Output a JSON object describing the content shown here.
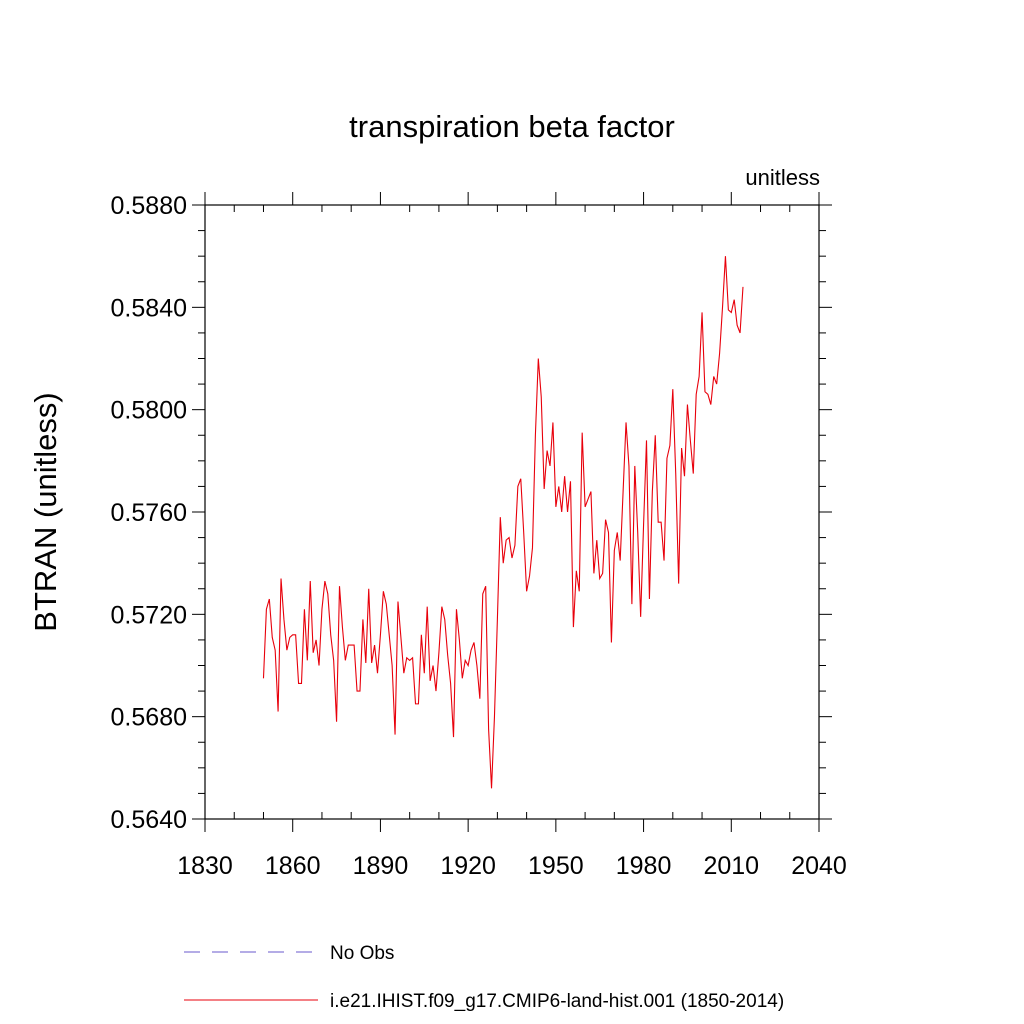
{
  "chart_data": {
    "type": "line",
    "title": "transpiration beta factor",
    "units_label": "unitless",
    "ylabel": "BTRAN  (unitless)",
    "xlabel": "",
    "xlim": [
      1830,
      2040
    ],
    "ylim": [
      0.564,
      0.588
    ],
    "x_ticks": [
      1830,
      1860,
      1890,
      1920,
      1950,
      1980,
      2010,
      2040
    ],
    "x_tick_labels": [
      "1830",
      "1860",
      "1890",
      "1920",
      "1950",
      "1980",
      "2010",
      "2040"
    ],
    "y_ticks": [
      0.564,
      0.568,
      0.572,
      0.576,
      0.58,
      0.584,
      0.588
    ],
    "y_tick_labels": [
      "0.5640",
      "0.5680",
      "0.5720",
      "0.5760",
      "0.5800",
      "0.5840",
      "0.5880"
    ],
    "grid": false,
    "legend_position": "bottom",
    "series": [
      {
        "name": "No Obs",
        "color": "#6a5acd",
        "dashed": true,
        "x": [],
        "values": []
      },
      {
        "name": "i.e21.IHIST.f09_g17.CMIP6-land-hist.001 (1850-2014)",
        "color": "#e8000b",
        "dashed": false,
        "x": [
          1850,
          1851,
          1852,
          1853,
          1854,
          1855,
          1856,
          1857,
          1858,
          1859,
          1860,
          1861,
          1862,
          1863,
          1864,
          1865,
          1866,
          1867,
          1868,
          1869,
          1870,
          1871,
          1872,
          1873,
          1874,
          1875,
          1876,
          1877,
          1878,
          1879,
          1880,
          1881,
          1882,
          1883,
          1884,
          1885,
          1886,
          1887,
          1888,
          1889,
          1890,
          1891,
          1892,
          1893,
          1894,
          1895,
          1896,
          1897,
          1898,
          1899,
          1900,
          1901,
          1902,
          1903,
          1904,
          1905,
          1906,
          1907,
          1908,
          1909,
          1910,
          1911,
          1912,
          1913,
          1914,
          1915,
          1916,
          1917,
          1918,
          1919,
          1920,
          1921,
          1922,
          1923,
          1924,
          1925,
          1926,
          1927,
          1928,
          1929,
          1930,
          1931,
          1932,
          1933,
          1934,
          1935,
          1936,
          1937,
          1938,
          1939,
          1940,
          1941,
          1942,
          1943,
          1944,
          1945,
          1946,
          1947,
          1948,
          1949,
          1950,
          1951,
          1952,
          1953,
          1954,
          1955,
          1956,
          1957,
          1958,
          1959,
          1960,
          1961,
          1962,
          1963,
          1964,
          1965,
          1966,
          1967,
          1968,
          1969,
          1970,
          1971,
          1972,
          1973,
          1974,
          1975,
          1976,
          1977,
          1978,
          1979,
          1980,
          1981,
          1982,
          1983,
          1984,
          1985,
          1986,
          1987,
          1988,
          1989,
          1990,
          1991,
          1992,
          1993,
          1994,
          1995,
          1996,
          1997,
          1998,
          1999,
          2000,
          2001,
          2002,
          2003,
          2004,
          2005,
          2006,
          2007,
          2008,
          2009,
          2010,
          2011,
          2012,
          2013,
          2014
        ],
        "values": [
          0.5695,
          0.5722,
          0.5726,
          0.5711,
          0.5706,
          0.5682,
          0.5734,
          0.5718,
          0.5706,
          0.5711,
          0.5712,
          0.5712,
          0.5693,
          0.5693,
          0.5722,
          0.5702,
          0.5733,
          0.5705,
          0.571,
          0.57,
          0.5722,
          0.5733,
          0.5728,
          0.5712,
          0.5702,
          0.5678,
          0.5731,
          0.5715,
          0.5702,
          0.5708,
          0.5708,
          0.5708,
          0.569,
          0.569,
          0.5718,
          0.5701,
          0.573,
          0.5701,
          0.5708,
          0.5697,
          0.5712,
          0.5729,
          0.5724,
          0.5712,
          0.57,
          0.5673,
          0.5725,
          0.5711,
          0.5697,
          0.5703,
          0.5702,
          0.5703,
          0.5685,
          0.5685,
          0.5712,
          0.5697,
          0.5723,
          0.5694,
          0.57,
          0.569,
          0.5705,
          0.5723,
          0.5718,
          0.5704,
          0.5693,
          0.5672,
          0.5722,
          0.571,
          0.5695,
          0.5702,
          0.57,
          0.5706,
          0.5709,
          0.57,
          0.5687,
          0.5728,
          0.5731,
          0.5675,
          0.5652,
          0.568,
          0.5718,
          0.5758,
          0.574,
          0.5749,
          0.575,
          0.5742,
          0.5747,
          0.577,
          0.5773,
          0.5752,
          0.5729,
          0.5735,
          0.5746,
          0.579,
          0.582,
          0.5805,
          0.5769,
          0.5784,
          0.5778,
          0.5795,
          0.5762,
          0.577,
          0.576,
          0.5774,
          0.576,
          0.5772,
          0.5715,
          0.5737,
          0.5729,
          0.5791,
          0.5762,
          0.5765,
          0.5768,
          0.5736,
          0.5749,
          0.5734,
          0.5736,
          0.5757,
          0.5752,
          0.5709,
          0.5745,
          0.5752,
          0.5741,
          0.5768,
          0.5795,
          0.5778,
          0.5724,
          0.5778,
          0.5752,
          0.5719,
          0.5755,
          0.5788,
          0.5726,
          0.5768,
          0.579,
          0.5756,
          0.5756,
          0.5741,
          0.5781,
          0.5786,
          0.5808,
          0.5775,
          0.5732,
          0.5785,
          0.5774,
          0.5802,
          0.5788,
          0.5775,
          0.5806,
          0.5813,
          0.5838,
          0.5807,
          0.5806,
          0.5802,
          0.5813,
          0.581,
          0.5822,
          0.584,
          0.586,
          0.5839,
          0.5838,
          0.5843,
          0.5833,
          0.583,
          0.5848
        ]
      }
    ]
  }
}
